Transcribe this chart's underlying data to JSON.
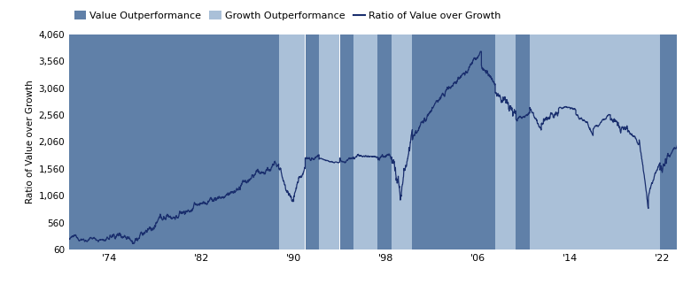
{
  "title": "",
  "ylabel": "Ratio of Value over Growth",
  "yticks": [
    60,
    560,
    1060,
    1560,
    2060,
    2560,
    3060,
    3560,
    4060
  ],
  "ytick_labels": [
    "60",
    "560",
    "1,060",
    "1,560",
    "2,060",
    "2,560",
    "3,060",
    "3,560",
    "4,060"
  ],
  "xtick_positions": [
    1974,
    1982,
    1990,
    1998,
    2006,
    2014,
    2022
  ],
  "xtick_labels": [
    "'74",
    "'82",
    "'90",
    "'98",
    "'06",
    "'14",
    "'22"
  ],
  "ylim": [
    60,
    4060
  ],
  "xlim_start": 1970.5,
  "xlim_end": 2023.3,
  "value_outperf_color": "#6080a8",
  "growth_outperf_color": "#aac0d8",
  "line_color": "#1a2f6e",
  "legend_labels": [
    "Value Outperformance",
    "Growth Outperformance",
    "Ratio of Value over Growth"
  ],
  "value_regions": [
    [
      1970.5,
      1988.7
    ],
    [
      1991.0,
      1992.2
    ],
    [
      1994.0,
      1995.2
    ],
    [
      1997.3,
      1998.5
    ],
    [
      2000.3,
      2007.5
    ],
    [
      2009.3,
      2010.5
    ],
    [
      2021.8,
      2023.3
    ]
  ],
  "growth_regions": [
    [
      1988.7,
      1991.0
    ],
    [
      1992.2,
      1994.0
    ],
    [
      1995.2,
      1997.3
    ],
    [
      1998.5,
      2000.3
    ],
    [
      2007.5,
      2009.3
    ],
    [
      2010.5,
      2021.8
    ]
  ]
}
